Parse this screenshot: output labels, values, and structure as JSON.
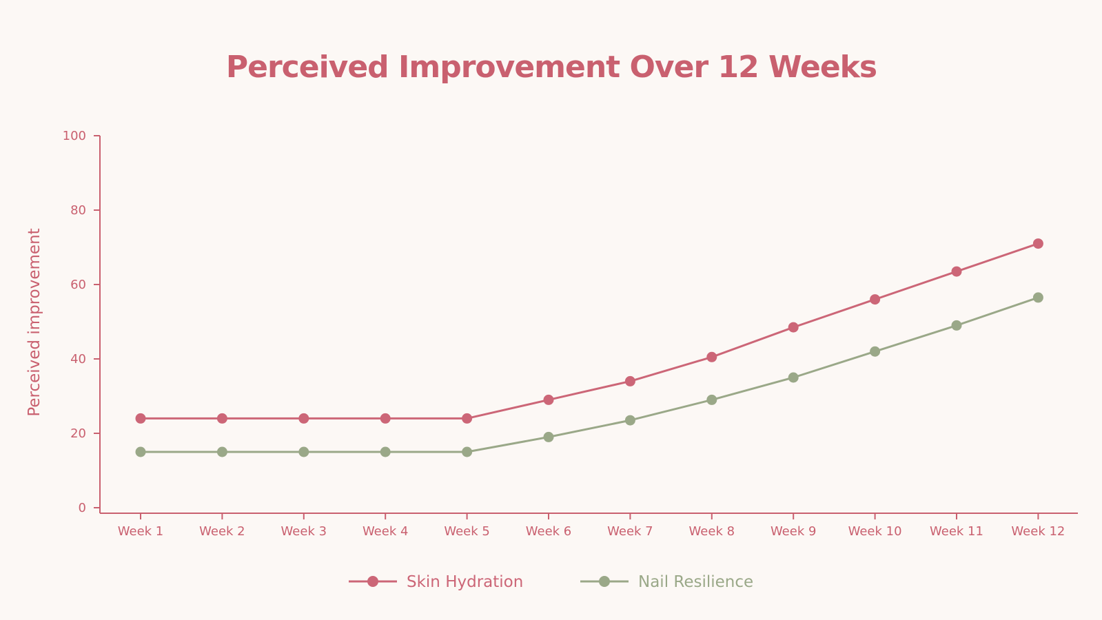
{
  "chart_data": {
    "type": "line",
    "title": "Perceived Improvement Over 12 Weeks",
    "xlabel": "",
    "ylabel": "Perceived improvement",
    "categories": [
      "Week 1",
      "Week 2",
      "Week 3",
      "Week 4",
      "Week 5",
      "Week 6",
      "Week 7",
      "Week 8",
      "Week 9",
      "Week 10",
      "Week 11",
      "Week 12"
    ],
    "ylim": [
      0,
      100
    ],
    "yticks": [
      0,
      20,
      40,
      60,
      80,
      100
    ],
    "grid": false,
    "legend": "bottom-center",
    "series": [
      {
        "name": "Skin Hydration",
        "color": "#cc6677",
        "values": [
          24,
          24,
          24,
          24,
          24,
          29,
          34,
          40.5,
          48.5,
          56,
          63.5,
          71
        ]
      },
      {
        "name": "Nail Resilience",
        "color": "#9aa888",
        "values": [
          15,
          15,
          15,
          15,
          15,
          19,
          23.5,
          29,
          35,
          42,
          49,
          56.5
        ]
      }
    ]
  },
  "colors": {
    "background": "#fcf8f5",
    "title": "#c9606f",
    "axis": "#c9606f",
    "tick_text": "#c9606f"
  }
}
